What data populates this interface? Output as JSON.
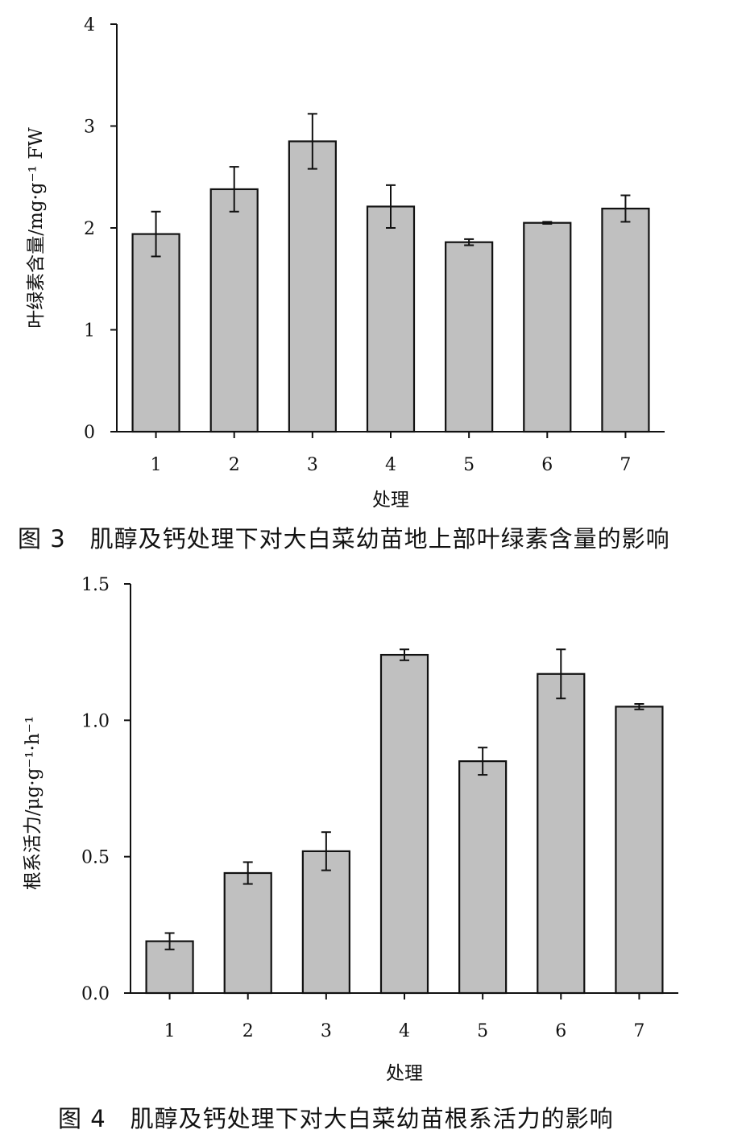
{
  "chart_data": [
    {
      "type": "bar",
      "categories": [
        "1",
        "2",
        "3",
        "4",
        "5",
        "6",
        "7"
      ],
      "values": [
        1.94,
        2.38,
        2.85,
        2.21,
        1.86,
        2.05,
        2.19
      ],
      "errors": [
        0.22,
        0.22,
        0.27,
        0.21,
        0.03,
        0.01,
        0.13
      ],
      "xlabel": "处理",
      "ylabel": "叶绿素含量/mg·g⁻¹ FW",
      "ylim": [
        0,
        4
      ],
      "yticks": [
        "0",
        "1",
        "2",
        "3",
        "4"
      ],
      "grid": false,
      "bar_color": "#c0c0c0",
      "caption_number": "图 3",
      "caption_text": "肌醇及钙处理下对大白菜幼苗地上部叶绿素含量的影响"
    },
    {
      "type": "bar",
      "categories": [
        "1",
        "2",
        "3",
        "4",
        "5",
        "6",
        "7"
      ],
      "values": [
        0.19,
        0.44,
        0.52,
        1.24,
        0.85,
        1.17,
        1.05
      ],
      "errors": [
        0.03,
        0.04,
        0.07,
        0.02,
        0.05,
        0.09,
        0.01
      ],
      "xlabel": "处理",
      "ylabel": "根系活力/μg·g⁻¹·h⁻¹",
      "ylim": [
        0,
        1.5
      ],
      "yticks": [
        "0.0",
        "0.5",
        "1.0",
        "1.5"
      ],
      "grid": false,
      "bar_color": "#c0c0c0",
      "caption_number": "图 4",
      "caption_text": "肌醇及钙处理下对大白菜幼苗根系活力的影响"
    }
  ]
}
